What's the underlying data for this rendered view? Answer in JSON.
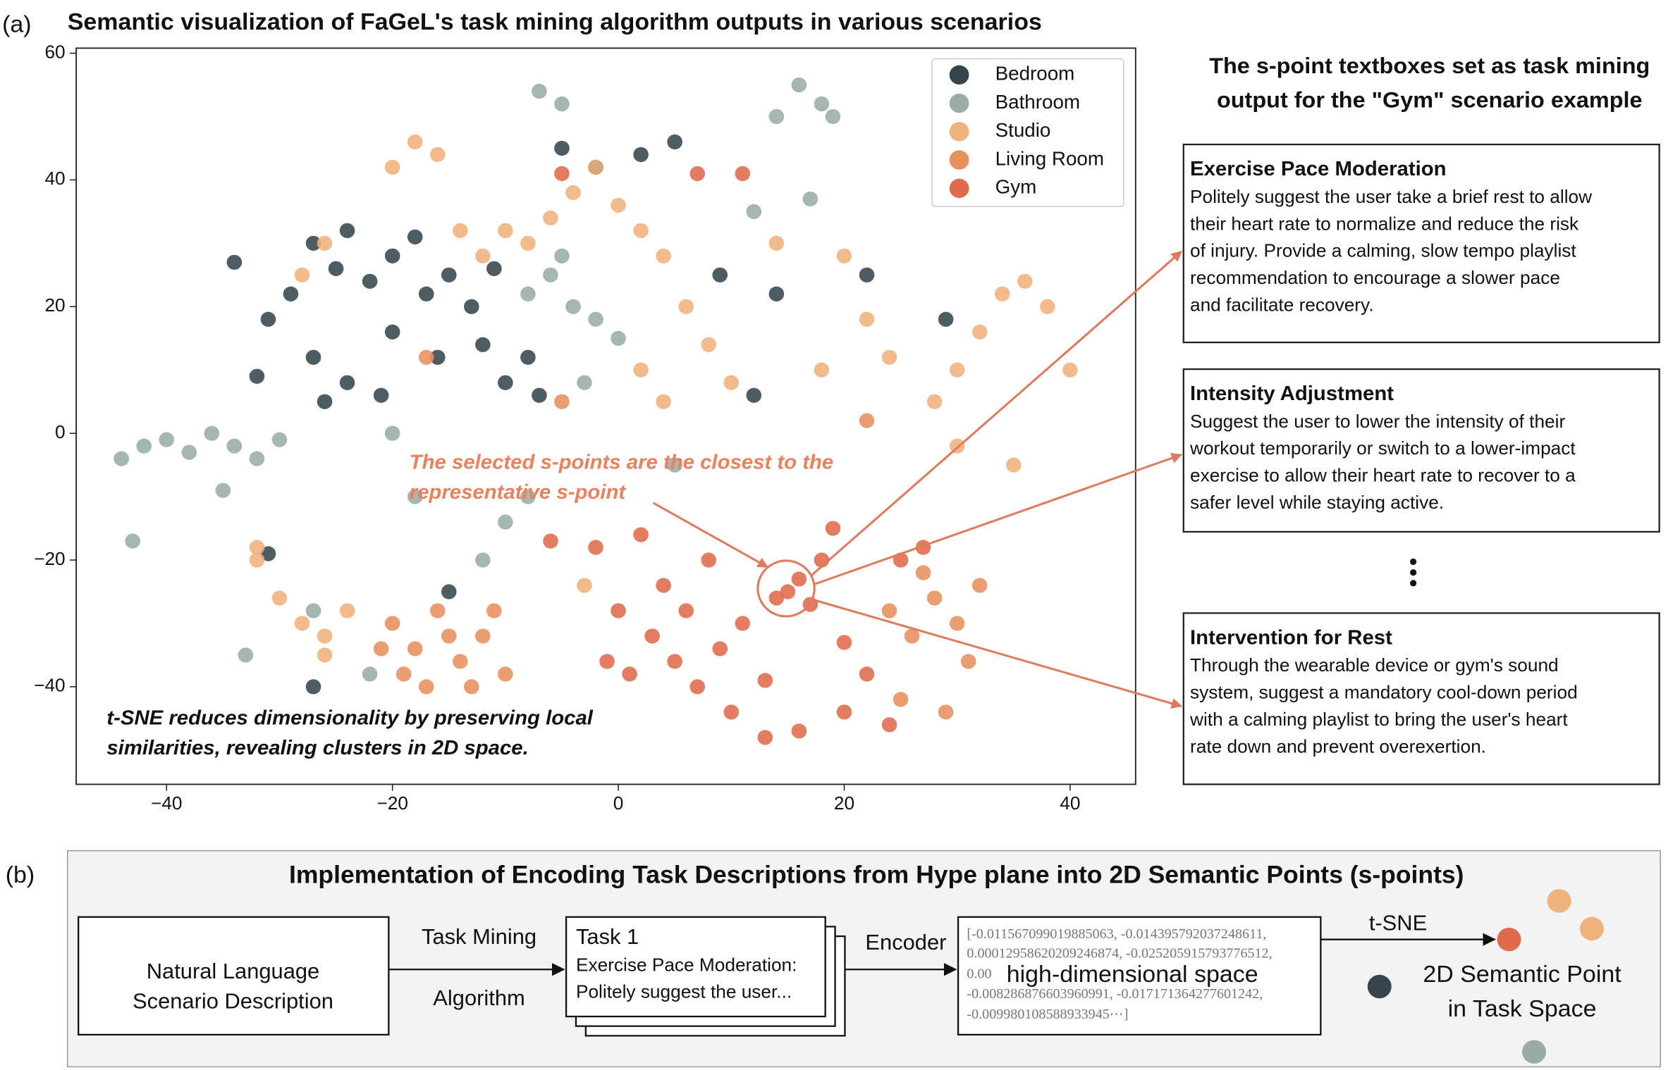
{
  "panel_a_label": "(a)",
  "chart_data": {
    "type": "scatter",
    "title": "Semantic visualization of FaGeL's task mining algorithm outputs in various scenarios",
    "xlim": [
      -48,
      45.8
    ],
    "ylim": [
      -55.4,
      60.8
    ],
    "xticks": [
      {
        "value": -40,
        "label": "−40"
      },
      {
        "value": -20,
        "label": "−20"
      },
      0,
      20,
      40
    ],
    "yticks": [
      {
        "value": -40,
        "label": "−40"
      },
      {
        "value": -20,
        "label": "−20"
      },
      0,
      20,
      40,
      60
    ],
    "legend": "upper right",
    "grid": false,
    "series": [
      {
        "name": "Bedroom",
        "color": "#36454d",
        "x": [
          -34,
          -31,
          -29,
          -27,
          -25,
          -24,
          -22,
          -20,
          -18,
          -17,
          -15,
          -13,
          -11,
          -27,
          -24,
          -20,
          -16,
          -12,
          -10,
          -7,
          -8,
          -32,
          -27,
          -5,
          -2,
          2,
          5,
          9,
          12,
          14,
          22,
          29,
          -31,
          -15,
          -26,
          -21
        ],
        "y": [
          27,
          18,
          22,
          30,
          26,
          32,
          24,
          28,
          31,
          22,
          25,
          20,
          26,
          12,
          8,
          16,
          12,
          14,
          8,
          6,
          12,
          9,
          -40,
          45,
          42,
          44,
          46,
          25,
          6,
          22,
          25,
          18,
          -19,
          -25,
          5,
          6
        ]
      },
      {
        "name": "Bathroom",
        "color": "#9aaca5",
        "x": [
          -44,
          -42,
          -40,
          -38,
          -36,
          -34,
          -32,
          -30,
          -35,
          -43,
          -8,
          -6,
          -4,
          -2,
          -5,
          0,
          -3,
          -10,
          -8,
          -12,
          -5,
          -7,
          18,
          16,
          19,
          14,
          12,
          17,
          -18,
          -33,
          -22,
          -27,
          -20,
          5
        ],
        "y": [
          -4,
          -2,
          -1,
          -3,
          0,
          -2,
          -4,
          -1,
          -9,
          -17,
          22,
          25,
          20,
          18,
          28,
          15,
          8,
          -14,
          -10,
          -20,
          52,
          54,
          52,
          55,
          50,
          50,
          35,
          37,
          -10,
          -35,
          -38,
          -28,
          0,
          -5
        ]
      },
      {
        "name": "Studio",
        "color": "#efb27c",
        "x": [
          -20,
          -18,
          -16,
          -26,
          -28,
          -14,
          -12,
          -10,
          -8,
          -6,
          -4,
          -2,
          0,
          2,
          4,
          6,
          2,
          4,
          8,
          10,
          -28,
          -30,
          -26,
          -24,
          -32,
          -32,
          20,
          22,
          24,
          18,
          28,
          30,
          32,
          34,
          36,
          38,
          40,
          30,
          35,
          -26,
          -3,
          14
        ],
        "y": [
          42,
          46,
          44,
          30,
          25,
          32,
          28,
          32,
          30,
          34,
          38,
          42,
          36,
          32,
          28,
          20,
          10,
          5,
          14,
          8,
          -30,
          -26,
          -32,
          -28,
          -20,
          -18,
          28,
          18,
          12,
          10,
          5,
          10,
          16,
          22,
          24,
          20,
          10,
          -2,
          -5,
          -35,
          -24,
          30
        ]
      },
      {
        "name": "Living Room",
        "color": "#e8905e",
        "x": [
          -20,
          -18,
          -16,
          -14,
          -12,
          -10,
          -19,
          -15,
          -17,
          -11,
          -21,
          -13,
          24,
          26,
          28,
          30,
          32,
          27,
          31,
          25,
          29,
          -5,
          22,
          -17
        ],
        "y": [
          -30,
          -34,
          -28,
          -36,
          -32,
          -38,
          -38,
          -32,
          -40,
          -28,
          -34,
          -40,
          -28,
          -32,
          -26,
          -30,
          -24,
          -22,
          -36,
          -42,
          -44,
          5,
          2,
          12
        ]
      },
      {
        "name": "Gym",
        "color": "#e06a4c",
        "x": [
          -6,
          -2,
          2,
          4,
          6,
          3,
          5,
          7,
          1,
          9,
          11,
          10,
          13,
          15,
          16,
          17,
          14,
          18,
          20,
          22,
          24,
          16,
          13,
          20,
          25,
          27,
          19,
          8,
          -5,
          7,
          11,
          0,
          -1
        ],
        "y": [
          -17,
          -18,
          -16,
          -24,
          -28,
          -32,
          -36,
          -40,
          -38,
          -34,
          -30,
          -44,
          -39,
          -25,
          -23,
          -27,
          -26,
          -20,
          -33,
          -38,
          -46,
          -47,
          -48,
          -44,
          -20,
          -18,
          -15,
          -20,
          41,
          41,
          41,
          -28,
          -36
        ]
      }
    ],
    "annotations": {
      "selected": [
        "The selected s-points are the closest to the",
        "representative s-point"
      ],
      "tsne_note": [
        "t-SNE reduces dimensionality by preserving local",
        "similarities, revealing clusters in 2D space."
      ]
    }
  },
  "textboxes": {
    "heading": [
      "The s-point textboxes set as task mining",
      "output for the \"Gym\" scenario example"
    ],
    "boxes": [
      {
        "title": "Exercise Pace Moderation",
        "lines": [
          "Politely suggest the user take a brief rest to allow",
          "their heart rate to normalize and reduce the risk",
          "of injury. Provide a calming, slow tempo playlist",
          "recommendation to encourage a slower pace",
          "and facilitate recovery."
        ]
      },
      {
        "title": "Intensity Adjustment",
        "lines": [
          "Suggest the user to lower the intensity of their",
          "workout temporarily or switch to a lower-impact",
          "exercise to allow their heart rate to recover to a",
          "safer level while staying active."
        ]
      },
      {
        "title": "Intervention for Rest",
        "lines": [
          "Through the wearable device or gym's sound",
          "system, suggest a mandatory cool-down period",
          "with a calming playlist to bring the user's heart",
          "rate down and prevent overexertion."
        ]
      }
    ]
  },
  "panel_b": {
    "label": "(b)",
    "title": "Implementation of Encoding Task Descriptions from Hype plane into 2D Semantic Points (s-points)",
    "input": [
      "Natural Language",
      "Scenario Description"
    ],
    "step1": [
      "Task Mining",
      "Algorithm"
    ],
    "task": [
      "Task 1",
      "Exercise Pace Moderation:",
      "Politely suggest the user..."
    ],
    "step2": "Encoder",
    "vector": [
      "[-0.011567099019885063, -0.014395792037248611,",
      "0.00012958620209246874, -0.025205915793776512,",
      "0.00",
      "-0.008286876603960991, -0.017171364277601242,",
      "-0.009980108588933945⋯]"
    ],
    "vector_caption": "high-dimensional space",
    "step3": "t-SNE",
    "output": [
      "2D Semantic Point",
      "in Task Space"
    ]
  }
}
